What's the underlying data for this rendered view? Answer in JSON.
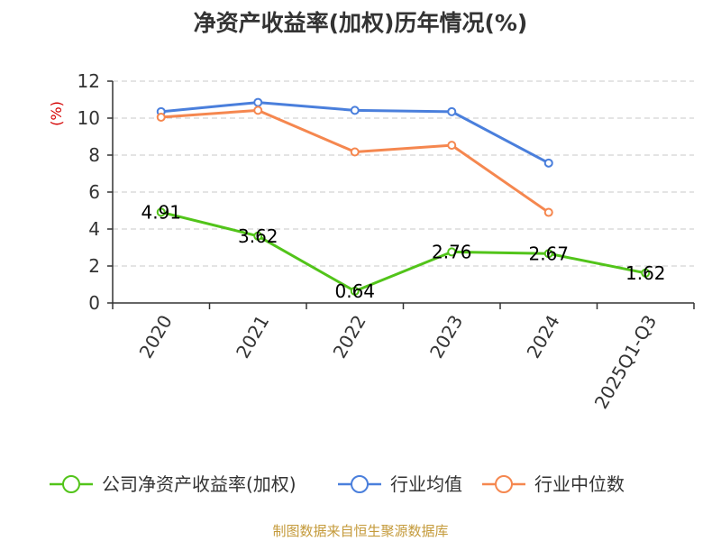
{
  "title": "净资产收益率(加权)历年情况(%)",
  "source_note": "制图数据来自恒生聚源数据库",
  "chart_data": {
    "type": "line",
    "title": "净资产收益率(加权)历年情况(%)",
    "ylabel": "(%)",
    "xlabel": "",
    "categories": [
      "2020",
      "2021",
      "2022",
      "2023",
      "2024",
      "2025Q1-Q3"
    ],
    "ylim": [
      0,
      12
    ],
    "yticks": [
      0,
      2,
      4,
      6,
      8,
      10,
      12
    ],
    "grid": true,
    "legend_position": "bottom",
    "series": [
      {
        "name": "公司净资产收益率(加权)",
        "color": "#52c41a",
        "values": [
          4.91,
          3.62,
          0.64,
          2.76,
          2.67,
          1.62
        ],
        "labels": [
          "4.91",
          "3.62",
          "0.64",
          "2.76",
          "2.67",
          "1.62"
        ]
      },
      {
        "name": "行业均值",
        "color": "#4a7fdc",
        "values": [
          10.35,
          10.85,
          10.42,
          10.35,
          7.57,
          null
        ]
      },
      {
        "name": "行业中位数",
        "color": "#f5874f",
        "values": [
          10.05,
          10.42,
          8.17,
          8.53,
          4.9,
          null
        ]
      }
    ]
  }
}
